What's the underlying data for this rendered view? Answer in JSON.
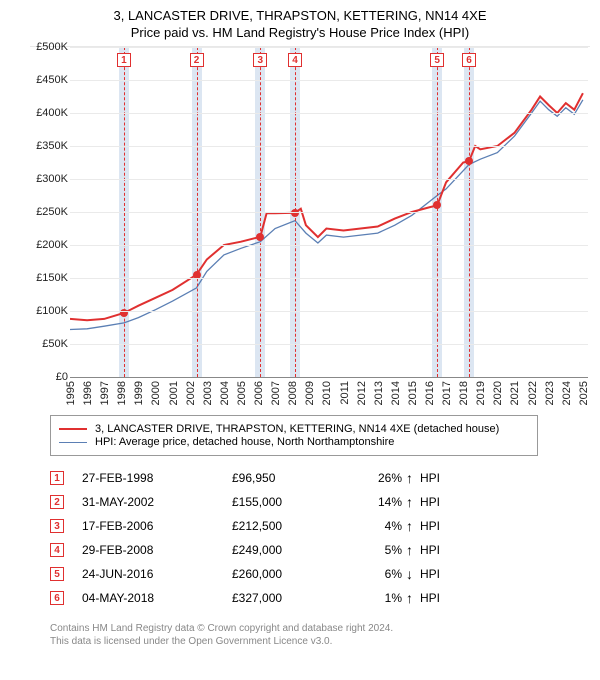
{
  "title_line1": "3, LANCASTER DRIVE, THRAPSTON, KETTERING, NN14 4XE",
  "title_line2": "Price paid vs. HM Land Registry's House Price Index (HPI)",
  "chart": {
    "type": "line",
    "xlim": [
      1995,
      2025.3
    ],
    "ylim": [
      0,
      500000
    ],
    "ytick_step": 50000,
    "yticks": [
      "£0",
      "£50K",
      "£100K",
      "£150K",
      "£200K",
      "£250K",
      "£300K",
      "£350K",
      "£400K",
      "£450K",
      "£500K"
    ],
    "xticks": [
      1995,
      1996,
      1997,
      1998,
      1999,
      2000,
      2001,
      2002,
      2003,
      2004,
      2005,
      2006,
      2007,
      2008,
      2009,
      2010,
      2011,
      2012,
      2013,
      2014,
      2015,
      2016,
      2017,
      2018,
      2019,
      2020,
      2021,
      2022,
      2023,
      2024,
      2025
    ],
    "background_color": "#ffffff",
    "grid_color": "#eaeaea",
    "marker_band_color": "#dce6f2",
    "marker_line_color": "#e03030",
    "series": [
      {
        "name": "property",
        "label": "3, LANCASTER DRIVE, THRAPSTON, KETTERING, NN14 4XE (detached house)",
        "color": "#e03030",
        "width": 2,
        "points": [
          [
            1995.0,
            88000
          ],
          [
            1996.0,
            86000
          ],
          [
            1997.0,
            88000
          ],
          [
            1998.15,
            96950
          ],
          [
            1999.0,
            108000
          ],
          [
            2000.0,
            120000
          ],
          [
            2001.0,
            132000
          ],
          [
            2002.4,
            155000
          ],
          [
            2003.0,
            178000
          ],
          [
            2004.0,
            200000
          ],
          [
            2005.0,
            205000
          ],
          [
            2006.13,
            212500
          ],
          [
            2006.5,
            248000
          ],
          [
            2007.0,
            248000
          ],
          [
            2008.16,
            249000
          ],
          [
            2008.5,
            255000
          ],
          [
            2008.8,
            230000
          ],
          [
            2009.5,
            212000
          ],
          [
            2010.0,
            225000
          ],
          [
            2011.0,
            222000
          ],
          [
            2012.0,
            225000
          ],
          [
            2013.0,
            228000
          ],
          [
            2014.0,
            240000
          ],
          [
            2015.0,
            250000
          ],
          [
            2016.0,
            257000
          ],
          [
            2016.48,
            260000
          ],
          [
            2017.0,
            295000
          ],
          [
            2018.0,
            325000
          ],
          [
            2018.34,
            327000
          ],
          [
            2018.7,
            350000
          ],
          [
            2019.0,
            345000
          ],
          [
            2020.0,
            350000
          ],
          [
            2021.0,
            370000
          ],
          [
            2022.0,
            405000
          ],
          [
            2022.5,
            425000
          ],
          [
            2023.0,
            412000
          ],
          [
            2023.5,
            400000
          ],
          [
            2024.0,
            415000
          ],
          [
            2024.5,
            405000
          ],
          [
            2025.0,
            430000
          ]
        ]
      },
      {
        "name": "hpi",
        "label": "HPI: Average price, detached house, North Northamptonshire",
        "color": "#5b7fb4",
        "width": 1.3,
        "points": [
          [
            1995.0,
            72000
          ],
          [
            1996.0,
            73000
          ],
          [
            1997.0,
            77000
          ],
          [
            1998.15,
            82000
          ],
          [
            1999.0,
            90000
          ],
          [
            2000.0,
            102000
          ],
          [
            2001.0,
            115000
          ],
          [
            2002.4,
            135000
          ],
          [
            2003.0,
            160000
          ],
          [
            2004.0,
            185000
          ],
          [
            2005.0,
            195000
          ],
          [
            2006.13,
            205000
          ],
          [
            2007.0,
            225000
          ],
          [
            2008.16,
            237000
          ],
          [
            2008.8,
            218000
          ],
          [
            2009.5,
            203000
          ],
          [
            2010.0,
            215000
          ],
          [
            2011.0,
            212000
          ],
          [
            2012.0,
            215000
          ],
          [
            2013.0,
            218000
          ],
          [
            2014.0,
            230000
          ],
          [
            2015.0,
            245000
          ],
          [
            2016.48,
            275000
          ],
          [
            2017.0,
            285000
          ],
          [
            2018.34,
            322000
          ],
          [
            2019.0,
            330000
          ],
          [
            2020.0,
            340000
          ],
          [
            2021.0,
            365000
          ],
          [
            2022.0,
            400000
          ],
          [
            2022.5,
            418000
          ],
          [
            2023.0,
            405000
          ],
          [
            2023.5,
            395000
          ],
          [
            2024.0,
            408000
          ],
          [
            2024.5,
            398000
          ],
          [
            2025.0,
            420000
          ]
        ]
      }
    ],
    "transaction_markers": [
      {
        "n": 1,
        "x": 1998.15,
        "y": 96950
      },
      {
        "n": 2,
        "x": 2002.4,
        "y": 155000
      },
      {
        "n": 3,
        "x": 2006.13,
        "y": 212500
      },
      {
        "n": 4,
        "x": 2008.16,
        "y": 249000
      },
      {
        "n": 5,
        "x": 2016.48,
        "y": 260000
      },
      {
        "n": 6,
        "x": 2018.34,
        "y": 327000
      }
    ]
  },
  "legend": [
    {
      "color": "#e03030",
      "width": 2,
      "label": "3, LANCASTER DRIVE, THRAPSTON, KETTERING, NN14 4XE (detached house)"
    },
    {
      "color": "#5b7fb4",
      "width": 1.3,
      "label": "HPI: Average price, detached house, North Northamptonshire"
    }
  ],
  "transactions": [
    {
      "n": "1",
      "date": "27-FEB-1998",
      "price": "£96,950",
      "pct": "26%",
      "arrow": "↑",
      "hpi": "HPI"
    },
    {
      "n": "2",
      "date": "31-MAY-2002",
      "price": "£155,000",
      "pct": "14%",
      "arrow": "↑",
      "hpi": "HPI"
    },
    {
      "n": "3",
      "date": "17-FEB-2006",
      "price": "£212,500",
      "pct": "4%",
      "arrow": "↑",
      "hpi": "HPI"
    },
    {
      "n": "4",
      "date": "29-FEB-2008",
      "price": "£249,000",
      "pct": "5%",
      "arrow": "↑",
      "hpi": "HPI"
    },
    {
      "n": "5",
      "date": "24-JUN-2016",
      "price": "£260,000",
      "pct": "6%",
      "arrow": "↓",
      "hpi": "HPI"
    },
    {
      "n": "6",
      "date": "04-MAY-2018",
      "price": "£327,000",
      "pct": "1%",
      "arrow": "↑",
      "hpi": "HPI"
    }
  ],
  "footer_line1": "Contains HM Land Registry data © Crown copyright and database right 2024.",
  "footer_line2": "This data is licensed under the Open Government Licence v3.0."
}
